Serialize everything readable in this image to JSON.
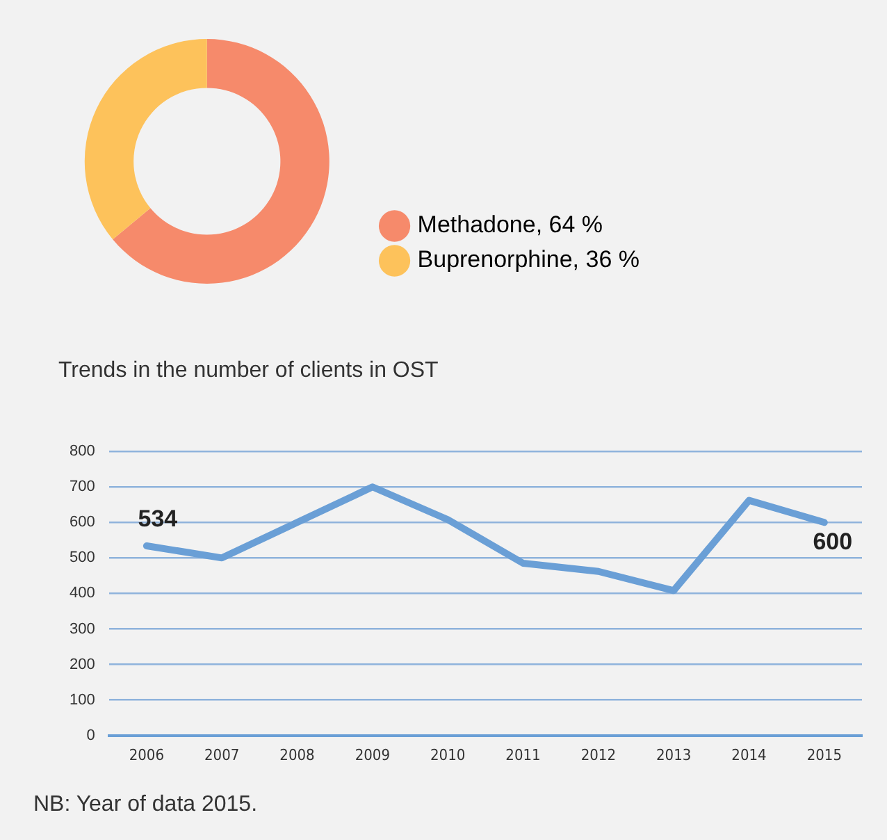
{
  "chart_data": [
    {
      "type": "donut",
      "categories": [
        "Methadone",
        "Buprenorphine"
      ],
      "values": [
        64,
        36
      ],
      "colors": [
        "#f68a6b",
        "#fdc25b"
      ],
      "value_labels": [
        "64 %",
        "36 %"
      ],
      "legend": "right"
    },
    {
      "type": "line",
      "title": "Trends in the number of clients in OST",
      "categories": [
        "2006",
        "2007",
        "2008",
        "2009",
        "2010",
        "2011",
        "2012",
        "2013",
        "2014",
        "2015"
      ],
      "series": [
        {
          "color": "#6a9fd6",
          "values": [
            534,
            500,
            600,
            700,
            608,
            485,
            462,
            408,
            662,
            600
          ],
          "value_labels": [
            "534",
            null,
            null,
            null,
            null,
            null,
            null,
            null,
            null,
            "600"
          ]
        }
      ],
      "ylim": [
        0,
        800
      ],
      "yticks": [
        0,
        100,
        200,
        300,
        400,
        500,
        600,
        700,
        800
      ],
      "grid": "y",
      "legend": false,
      "annotations": [
        "NB: Year of data 2015."
      ]
    }
  ]
}
